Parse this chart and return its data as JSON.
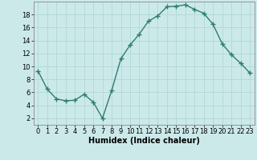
{
  "x": [
    0,
    1,
    2,
    3,
    4,
    5,
    6,
    7,
    8,
    9,
    10,
    11,
    12,
    13,
    14,
    15,
    16,
    17,
    18,
    19,
    20,
    21,
    22,
    23
  ],
  "y": [
    9.3,
    6.5,
    5.0,
    4.7,
    4.8,
    5.7,
    4.5,
    2.0,
    6.3,
    11.2,
    13.3,
    15.0,
    17.0,
    17.8,
    19.2,
    19.3,
    19.5,
    18.8,
    18.2,
    16.5,
    13.5,
    11.8,
    10.5,
    9.0
  ],
  "line_color": "#2e7d6e",
  "marker": "+",
  "marker_size": 4,
  "marker_linewidth": 1.0,
  "bg_color": "#cce9ea",
  "grid_color": "#b0d8d8",
  "xlabel": "Humidex (Indice chaleur)",
  "xlim": [
    -0.5,
    23.5
  ],
  "ylim": [
    1,
    20
  ],
  "xtick_labels": [
    "0",
    "1",
    "2",
    "3",
    "4",
    "5",
    "6",
    "7",
    "8",
    "9",
    "10",
    "11",
    "12",
    "13",
    "14",
    "15",
    "16",
    "17",
    "18",
    "19",
    "20",
    "21",
    "22",
    "23"
  ],
  "yticks": [
    2,
    4,
    6,
    8,
    10,
    12,
    14,
    16,
    18
  ],
  "xlabel_fontsize": 7,
  "tick_fontsize": 6,
  "linewidth": 1.0
}
